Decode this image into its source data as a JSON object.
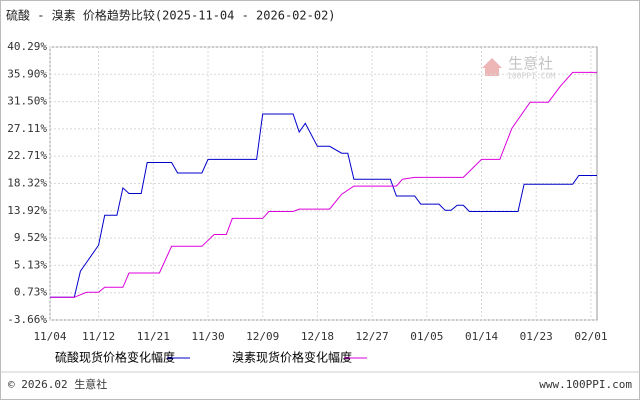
{
  "chart_data": {
    "type": "line",
    "title": "硫酸 - 溴素 价格趋势比较(2025-11-04 - 2026-02-02)",
    "watermark": "生意社",
    "watermark_sub": "100PPI.COM",
    "footer_left": "© 2026.02 生意社",
    "footer_right": "www.100PPI.com",
    "grid": true,
    "ylim": [
      -3.66,
      40.29
    ],
    "yticks": [
      {
        "value": 40.29,
        "label": "40.29%"
      },
      {
        "value": 35.9,
        "label": "35.90%"
      },
      {
        "value": 31.5,
        "label": "31.50%"
      },
      {
        "value": 27.11,
        "label": "27.11%"
      },
      {
        "value": 22.71,
        "label": "22.71%"
      },
      {
        "value": 18.32,
        "label": "18.32%"
      },
      {
        "value": 13.92,
        "label": "13.92%"
      },
      {
        "value": 9.52,
        "label": "9.52%"
      },
      {
        "value": 5.13,
        "label": "5.13%"
      },
      {
        "value": 0.73,
        "label": "0.73%"
      },
      {
        "value": -3.66,
        "label": "-3.66%"
      }
    ],
    "xticks": [
      "11/04",
      "11/12",
      "11/21",
      "11/30",
      "12/09",
      "12/18",
      "12/27",
      "01/05",
      "01/14",
      "01/23",
      "02/01"
    ],
    "series": [
      {
        "name": "硫酸现货价格变化幅度",
        "color": "#0000cc",
        "x": [
          "11/04",
          "11/08",
          "11/09",
          "11/10",
          "11/12",
          "11/13",
          "11/15",
          "11/16",
          "11/17",
          "11/19",
          "11/20",
          "11/24",
          "11/25",
          "11/29",
          "11/30",
          "12/08",
          "12/09",
          "12/14",
          "12/15",
          "12/16",
          "12/18",
          "12/20",
          "12/22",
          "12/23",
          "12/24",
          "12/30",
          "12/31",
          "01/03",
          "01/04",
          "01/07",
          "01/08",
          "01/09",
          "01/10",
          "01/11",
          "01/12",
          "01/20",
          "01/21",
          "01/29",
          "01/30",
          "02/02"
        ],
        "values": [
          0,
          0,
          4.2,
          5.6,
          8.4,
          13.2,
          13.2,
          17.6,
          16.7,
          16.7,
          21.7,
          21.7,
          20.0,
          20.0,
          22.2,
          22.2,
          29.5,
          29.5,
          26.6,
          28.0,
          24.3,
          24.3,
          23.2,
          23.2,
          19.0,
          19.0,
          16.3,
          16.3,
          15.0,
          15.0,
          14.0,
          14.0,
          14.8,
          14.8,
          13.8,
          13.8,
          18.2,
          18.2,
          19.6,
          19.6
        ]
      },
      {
        "name": "溴素现货价格变化幅度",
        "color": "#dd00dd",
        "x": [
          "11/04",
          "11/08",
          "11/10",
          "11/12",
          "11/13",
          "11/16",
          "11/17",
          "11/22",
          "11/24",
          "11/29",
          "12/01",
          "12/03",
          "12/04",
          "12/09",
          "12/10",
          "12/14",
          "12/15",
          "12/20",
          "12/22",
          "12/24",
          "12/31",
          "01/01",
          "01/03",
          "01/11",
          "01/14",
          "01/17",
          "01/19",
          "01/22",
          "01/25",
          "01/27",
          "01/29",
          "02/02"
        ],
        "values": [
          0,
          0,
          0.8,
          0.8,
          1.6,
          1.6,
          3.9,
          3.9,
          8.2,
          8.2,
          10.1,
          10.1,
          12.7,
          12.7,
          13.8,
          13.8,
          14.2,
          14.2,
          16.6,
          17.9,
          17.9,
          19.0,
          19.3,
          19.3,
          22.2,
          22.2,
          27.2,
          31.4,
          31.4,
          34.0,
          36.2,
          36.2
        ]
      }
    ]
  }
}
